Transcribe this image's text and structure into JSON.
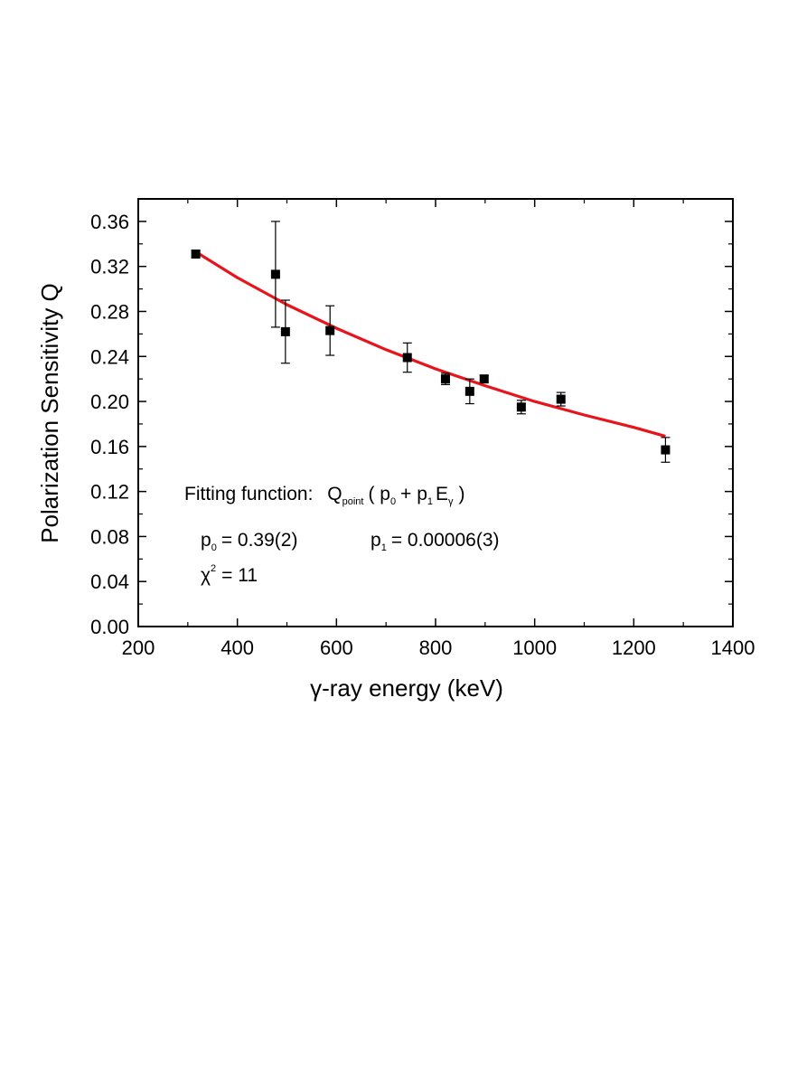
{
  "chart_data": {
    "type": "scatter",
    "xlabel_symbol": "γ",
    "xlabel_rest": "-ray energy (keV)",
    "ylabel": "Polarization Sensitivity Q",
    "xlim": [
      200,
      1400
    ],
    "ylim": [
      0.0,
      0.38
    ],
    "x_ticks": [
      200,
      400,
      600,
      800,
      1000,
      1200,
      1400
    ],
    "x_tick_labels": [
      "200",
      "400",
      "600",
      "800",
      "1000",
      "1200",
      "1400"
    ],
    "y_ticks": [
      0.0,
      0.04,
      0.08,
      0.12,
      0.16,
      0.2,
      0.24,
      0.28,
      0.32,
      0.36
    ],
    "y_tick_labels": [
      "0.00",
      "0.04",
      "0.08",
      "0.12",
      "0.16",
      "0.20",
      "0.24",
      "0.28",
      "0.32",
      "0.36"
    ],
    "points": [
      {
        "x": 316,
        "y": 0.331,
        "err": 0.003
      },
      {
        "x": 477,
        "y": 0.313,
        "err": 0.047
      },
      {
        "x": 497,
        "y": 0.262,
        "err": 0.028
      },
      {
        "x": 587,
        "y": 0.263,
        "err": 0.022
      },
      {
        "x": 743,
        "y": 0.239,
        "err": 0.013
      },
      {
        "x": 820,
        "y": 0.22,
        "err": 0.005
      },
      {
        "x": 869,
        "y": 0.209,
        "err": 0.011
      },
      {
        "x": 898,
        "y": 0.22,
        "err": 0.003
      },
      {
        "x": 973,
        "y": 0.195,
        "err": 0.006
      },
      {
        "x": 1053,
        "y": 0.202,
        "err": 0.006
      },
      {
        "x": 1264,
        "y": 0.157,
        "err": 0.011
      }
    ],
    "fit_curve": {
      "x": [
        316,
        400,
        500,
        600,
        700,
        800,
        900,
        1000,
        1100,
        1200,
        1264
      ],
      "y": [
        0.333,
        0.31,
        0.286,
        0.265,
        0.246,
        0.229,
        0.214,
        0.2,
        0.188,
        0.177,
        0.169
      ],
      "color": "#e8141c"
    },
    "marker_color": "#000000",
    "annotations": {
      "fit_label": "Fitting function:",
      "fit_Q": "Q",
      "fit_Q_sub": "point",
      "fit_open": "( p",
      "fit_p0_sub": "0",
      "fit_plus": "+ p",
      "fit_p1_sub": "1",
      "fit_E": "E",
      "fit_E_sub": "γ",
      "fit_close": ")",
      "p0_p": "p",
      "p0_sub": "0",
      "p0_value": "= 0.39(2)",
      "p1_p": "p",
      "p1_sub": "1",
      "p1_value": "= 0.00006(3)",
      "chi_symbol": "χ",
      "chi_sup": "2",
      "chi_value": "= 11"
    }
  }
}
